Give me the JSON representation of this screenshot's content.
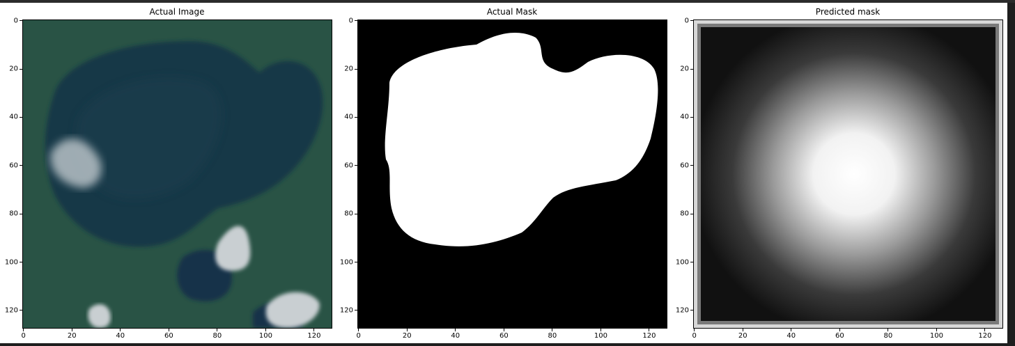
{
  "panels": [
    {
      "id": "actual-image",
      "title": "Actual Image",
      "kind": "satellite"
    },
    {
      "id": "actual-mask",
      "title": "Actual Mask",
      "kind": "mask"
    },
    {
      "id": "predicted-mask",
      "title": "Predicted mask",
      "kind": "prediction"
    }
  ],
  "axis": {
    "x_ticks": [
      "0",
      "20",
      "40",
      "60",
      "80",
      "100",
      "120"
    ],
    "y_ticks": [
      "0",
      "20",
      "40",
      "60",
      "80",
      "100",
      "120"
    ],
    "range": [
      0,
      127
    ]
  },
  "colors": {
    "water": "#173847",
    "land": "#2e5b4c",
    "cloud": "#c9cfd2",
    "mask_fg": "#ffffff",
    "mask_bg": "#000000"
  }
}
